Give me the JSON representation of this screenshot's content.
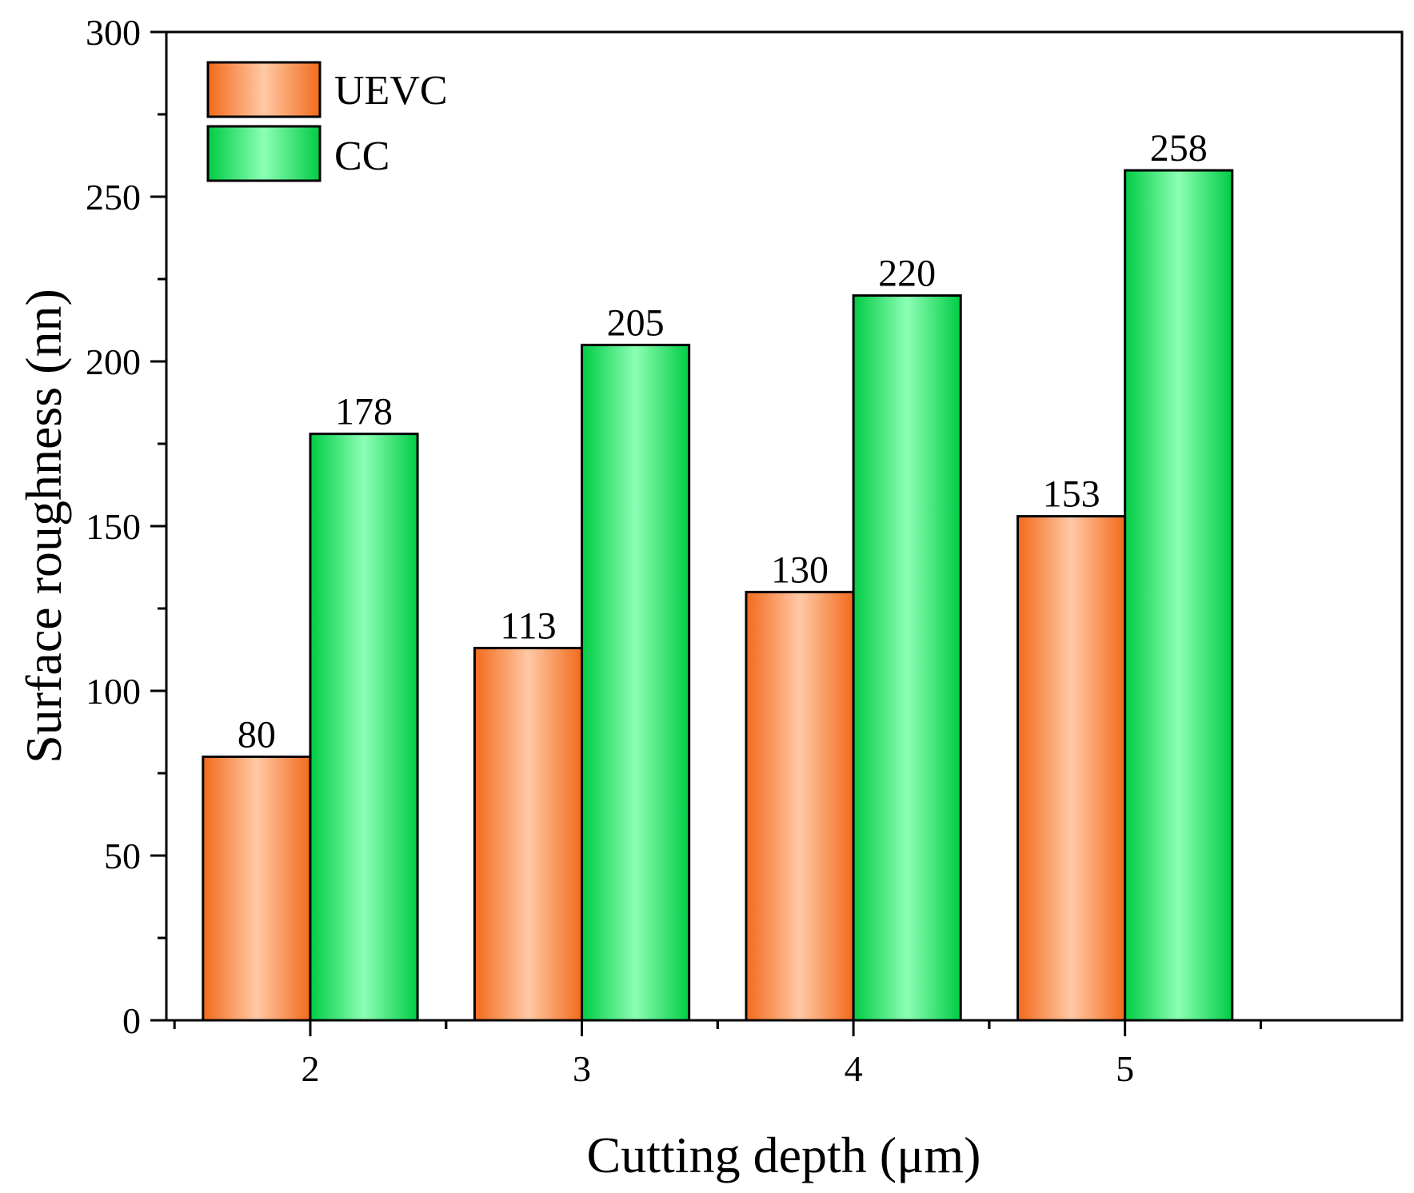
{
  "chart_data": {
    "type": "bar",
    "title": "",
    "xlabel": "Cutting depth (μm)",
    "ylabel": "Surface roughness (nn)",
    "categories": [
      "2",
      "3",
      "4",
      "5"
    ],
    "series": [
      {
        "name": "UEVC",
        "values": [
          80,
          113,
          130,
          153
        ],
        "labels": [
          "80",
          "113",
          "130",
          "153"
        ],
        "color_dark": "#f26a1b",
        "color_light": "#ffc9a6"
      },
      {
        "name": "CC",
        "values": [
          178,
          205,
          220,
          258
        ],
        "labels": [
          "178",
          "205",
          "220",
          "258"
        ],
        "color_dark": "#00cc44",
        "color_light": "#8cffb4"
      }
    ],
    "ylim": [
      0,
      300
    ],
    "yticks": [
      0,
      50,
      100,
      150,
      200,
      250,
      300
    ],
    "ytick_labels": [
      "0",
      "50",
      "100",
      "150",
      "200",
      "250",
      "300"
    ],
    "grid": false,
    "legend": "top-left"
  }
}
